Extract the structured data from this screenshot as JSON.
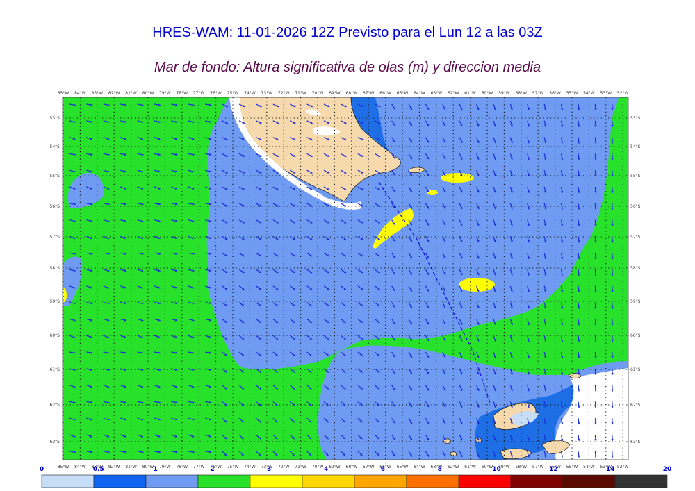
{
  "header": {
    "title": "HRES-WAM: 11-01-2026 12Z Previsto para el Lun 12 a las 03Z",
    "subtitle": "Mar de fondo: Altura significativa de olas (m) y direccion media"
  },
  "map": {
    "longitude_labels": [
      "85°W",
      "84°W",
      "83°W",
      "82°W",
      "81°W",
      "80°W",
      "79°W",
      "78°W",
      "77°W",
      "76°W",
      "75°W",
      "74°W",
      "73°W",
      "72°W",
      "71°W",
      "70°W",
      "69°W",
      "68°W",
      "67°W",
      "66°W",
      "65°W",
      "64°W",
      "63°W",
      "62°W",
      "61°W",
      "60°W",
      "59°W",
      "58°W",
      "57°W",
      "56°W",
      "55°W",
      "54°W",
      "53°W",
      "52°W"
    ],
    "latitude_labels": [
      "53°S",
      "54°S",
      "55°S",
      "56°S",
      "57°S",
      "58°S",
      "59°S",
      "60°S",
      "61°S",
      "62°S",
      "63°S"
    ],
    "colors": {
      "ocean_blue": "#6f9cf2",
      "swell_green": "#28e12b",
      "swell_yellow": "#ffff00",
      "shallow_blue": "#1e6fe6",
      "light_blue": "#c6dcf7",
      "land": "#f7d9ae",
      "arrow": "#1a2bd6",
      "track": "#1a1ad6"
    }
  },
  "colorbar": {
    "ticks": [
      "0",
      "0.5",
      "1",
      "2",
      "3",
      "4",
      "6",
      "8",
      "10",
      "12",
      "14",
      "20"
    ],
    "colors": [
      "#c6dcf7",
      "#0f64f2",
      "#6f9cf2",
      "#28e12b",
      "#ffff00",
      "#ffd700",
      "#ffa500",
      "#ff7000",
      "#ff0000",
      "#800000",
      "#5a0a00",
      "#333333"
    ]
  }
}
